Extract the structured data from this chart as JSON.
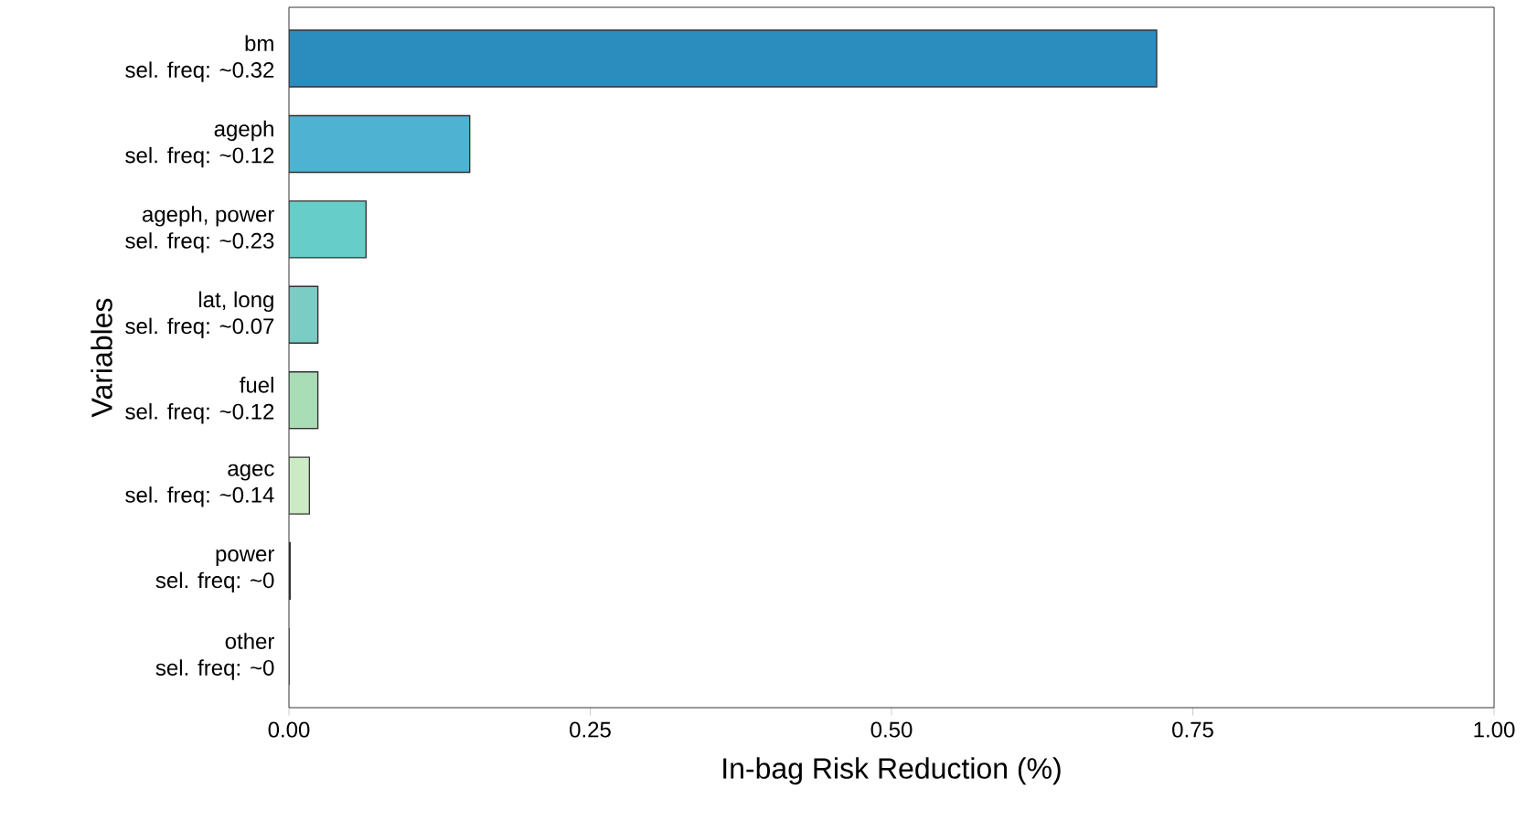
{
  "chart_data": {
    "type": "bar",
    "orientation": "horizontal",
    "xlabel": "In-bag Risk Reduction (%)",
    "ylabel": "Variables",
    "categories": [
      "bm\nsel. freq: ~0.32",
      "ageph\nsel. freq: ~0.12",
      "ageph, power\nsel. freq: ~0.23",
      "lat, long\nsel. freq: ~0.07",
      "fuel\nsel. freq: ~0.12",
      "agec\nsel. freq: ~0.14",
      "power\nsel. freq: ~0",
      "other\nsel. freq: ~0"
    ],
    "values": [
      0.72,
      0.15,
      0.064,
      0.024,
      0.024,
      0.017,
      0.001,
      0
    ],
    "colors": [
      "#2b8cbe",
      "#4eb3d3",
      "#66cdc8",
      "#7bccc4",
      "#a8ddb5",
      "#ccebc5",
      "#08589e",
      "#f0f9e8"
    ],
    "xlim": [
      0,
      1
    ],
    "xticks": [
      {
        "value": 0,
        "label": "0.00"
      },
      {
        "value": 0.25,
        "label": "0.25"
      },
      {
        "value": 0.5,
        "label": "0.50"
      },
      {
        "value": 0.75,
        "label": "0.75"
      },
      {
        "value": 1,
        "label": "1.00"
      }
    ],
    "grid": false
  }
}
